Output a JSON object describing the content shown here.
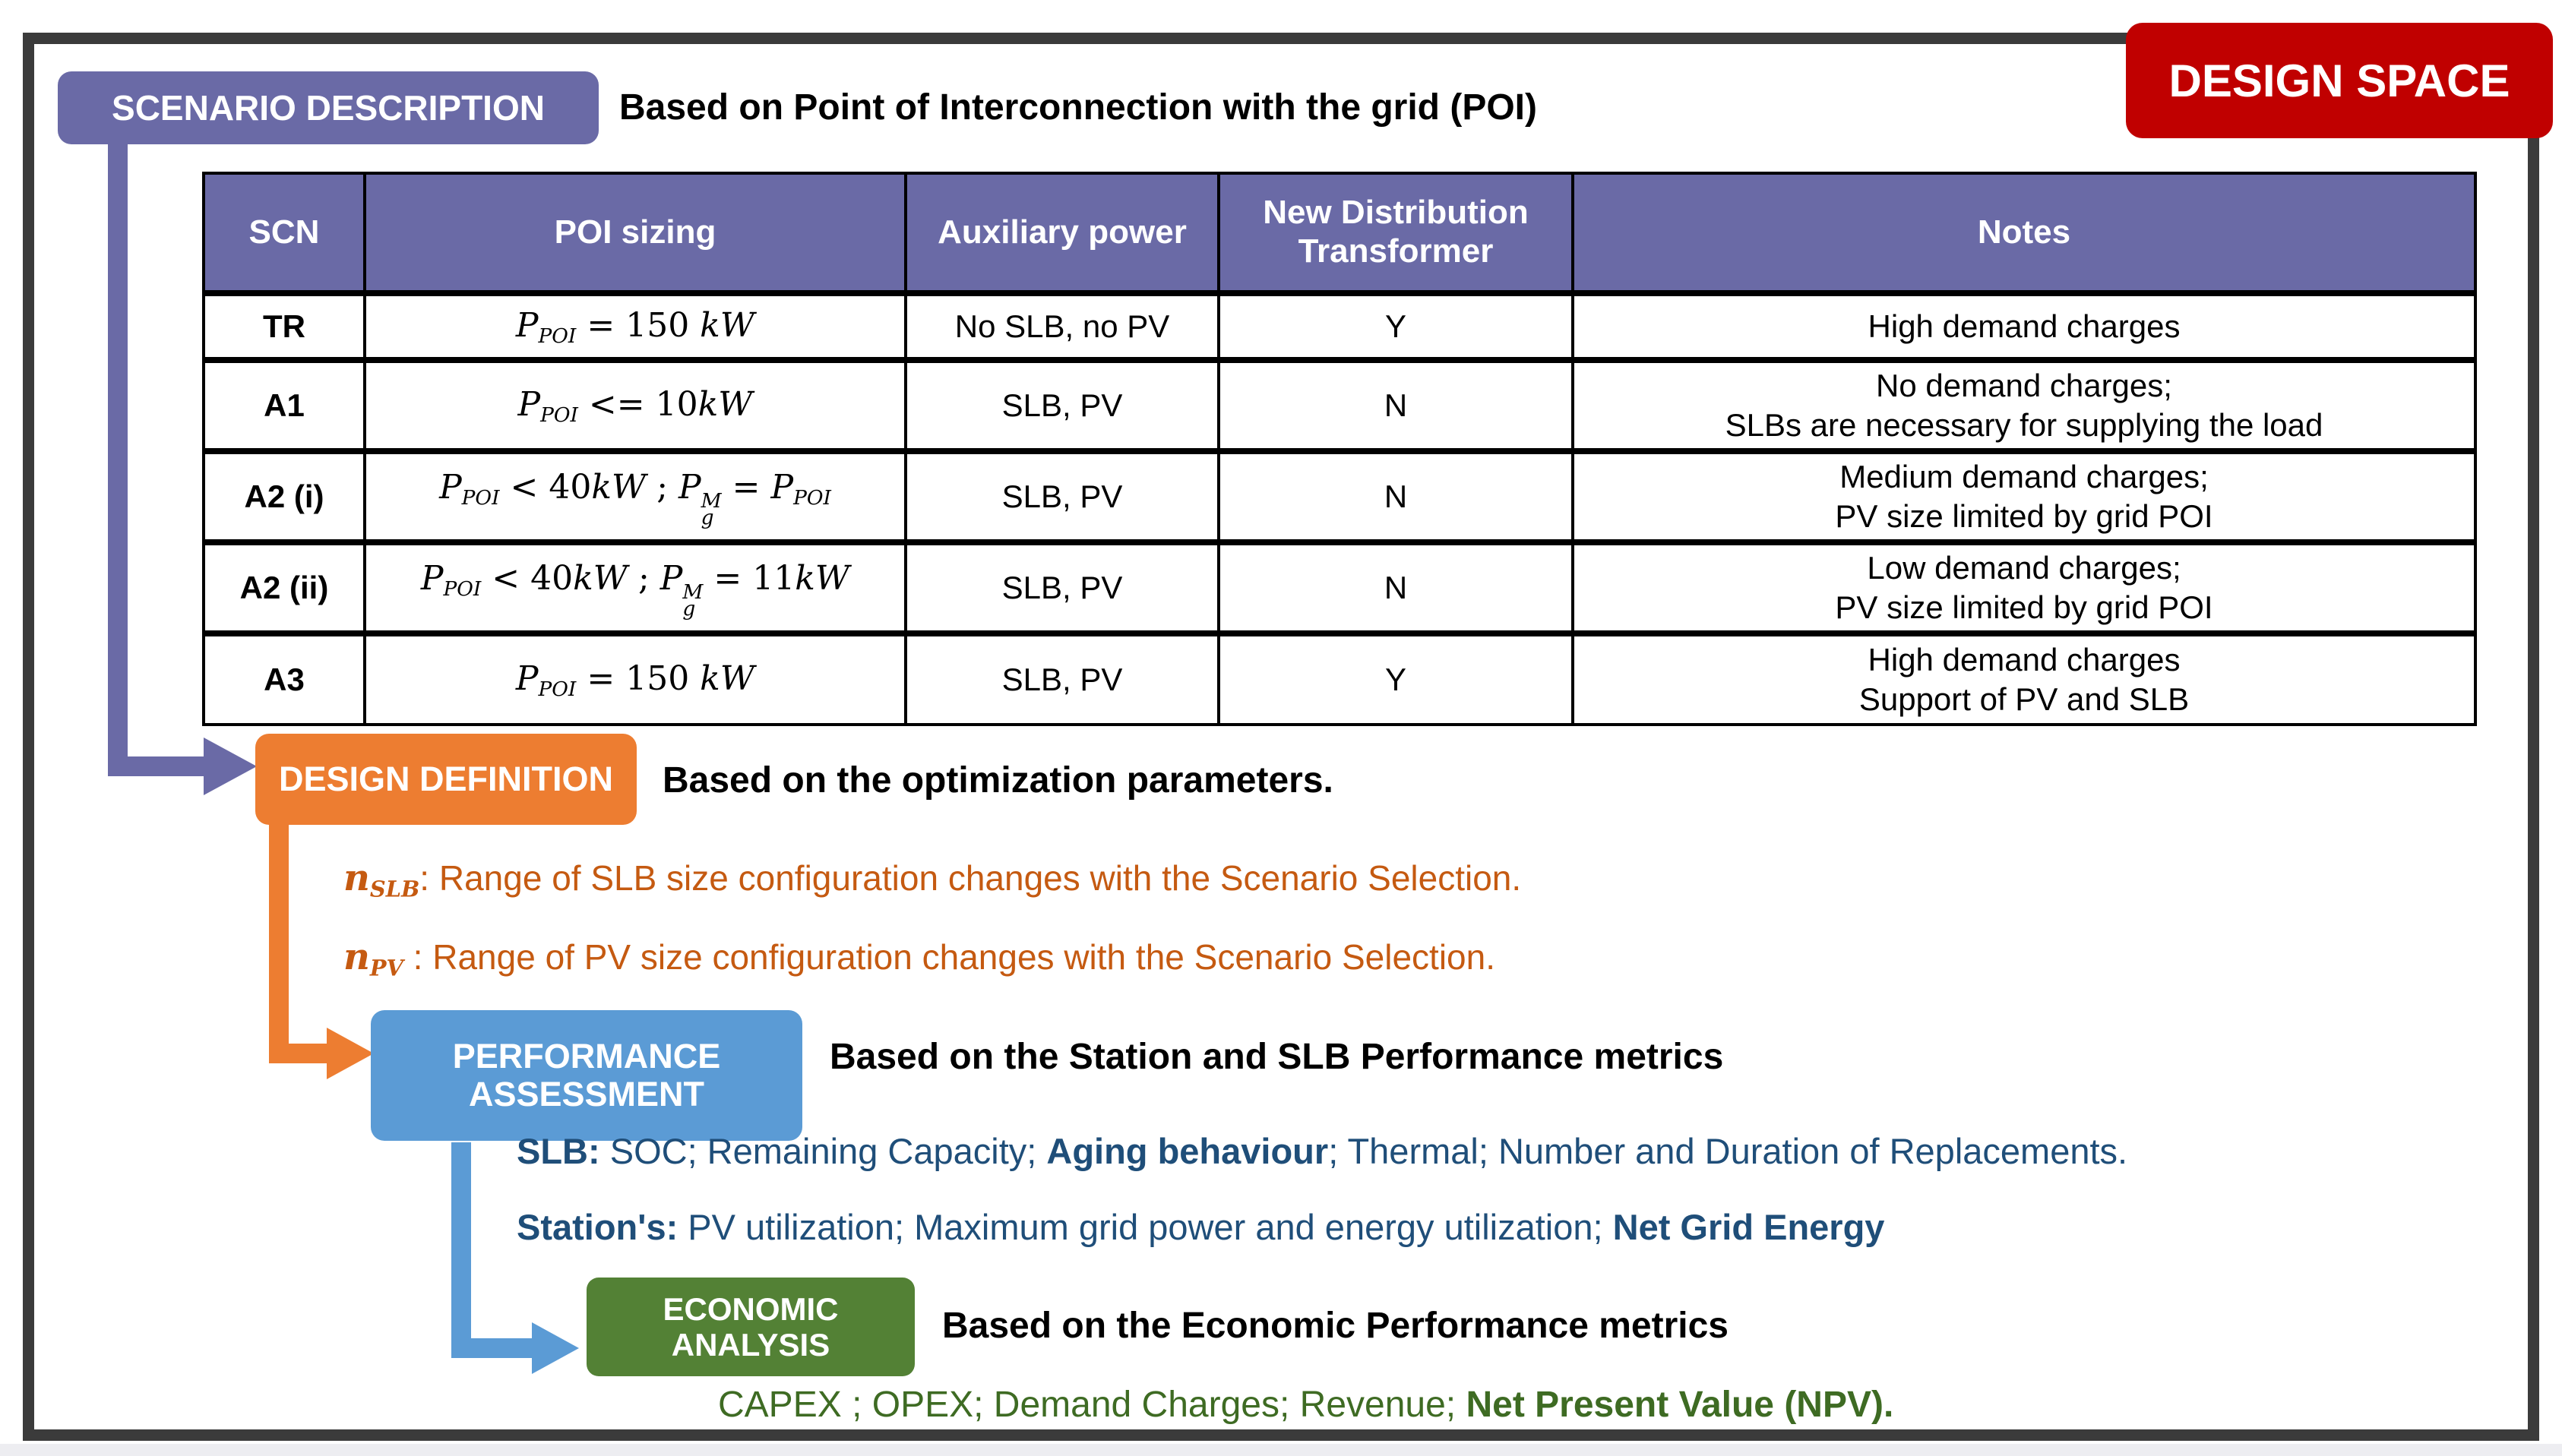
{
  "design_space_label": "DESIGN SPACE",
  "steps": {
    "scenario": {
      "badge": "SCENARIO DESCRIPTION",
      "caption": "Based on Point of Interconnection with the grid (POI)"
    },
    "design": {
      "badge": "DESIGN DEFINITION",
      "caption": "Based on the optimization parameters."
    },
    "performance": {
      "badge_line1": "PERFORMANCE",
      "badge_line2": "ASSESSMENT",
      "caption": "Based on the Station and SLB Performance metrics"
    },
    "economic": {
      "badge_line1": "ECONOMIC",
      "badge_line2": "ANALYSIS",
      "caption": "Based on the Economic Performance metrics"
    }
  },
  "table": {
    "headers": [
      "SCN",
      "POI sizing",
      "Auxiliary power",
      "New Distribution Transformer",
      "Notes"
    ],
    "rows": [
      {
        "scn": "TR",
        "poi": [
          {
            "i": "P"
          },
          {
            "sub": "POI"
          },
          {
            "n": " = 150 "
          },
          {
            "i": "kW"
          }
        ],
        "aux": "No SLB, no PV",
        "transformer": "Y",
        "notes": [
          "High demand charges"
        ]
      },
      {
        "scn": "A1",
        "poi": [
          {
            "i": "P"
          },
          {
            "sub": "POI"
          },
          {
            "n": " <= 10"
          },
          {
            "i": "kW"
          }
        ],
        "aux": "SLB, PV",
        "transformer": "N",
        "notes": [
          "No demand charges;",
          "SLBs are necessary for supplying the load"
        ]
      },
      {
        "scn": "A2 (i)",
        "poi": [
          {
            "i": "P"
          },
          {
            "sub": "POI"
          },
          {
            "n": " < 40"
          },
          {
            "i": "kW"
          },
          {
            "n": " ; "
          },
          {
            "i": "P"
          },
          {
            "ss": {
              "sup": "M",
              "sub": "g"
            }
          },
          {
            "n": " = "
          },
          {
            "i": "P"
          },
          {
            "sub": "POI"
          }
        ],
        "aux": "SLB, PV",
        "transformer": "N",
        "notes": [
          "Medium demand charges;",
          "PV size limited by grid POI"
        ]
      },
      {
        "scn": "A2 (ii)",
        "poi": [
          {
            "i": "P"
          },
          {
            "sub": "POI"
          },
          {
            "n": " < 40"
          },
          {
            "i": "kW"
          },
          {
            "n": " ; "
          },
          {
            "i": "P"
          },
          {
            "ss": {
              "sup": "M",
              "sub": "g"
            }
          },
          {
            "n": " = 11"
          },
          {
            "i": "kW"
          }
        ],
        "aux": "SLB, PV",
        "transformer": "N",
        "notes": [
          "Low demand charges;",
          "PV size limited by grid POI"
        ]
      },
      {
        "scn": "A3",
        "poi": [
          {
            "i": "P"
          },
          {
            "sub": "POI"
          },
          {
            "n": " = 150 "
          },
          {
            "i": "kW"
          }
        ],
        "aux": "SLB, PV",
        "transformer": "Y",
        "notes": [
          "High demand charges",
          "Support of PV and SLB"
        ]
      }
    ]
  },
  "design_params": [
    {
      "symbol": [
        {
          "i": "n"
        },
        {
          "sub": "SLB"
        }
      ],
      "text": ": Range of SLB size configuration changes with the Scenario Selection."
    },
    {
      "symbol": [
        {
          "i": "n"
        },
        {
          "sub": "PV"
        }
      ],
      "text": " : Range of PV size configuration changes with the Scenario Selection."
    }
  ],
  "performance_metrics": {
    "slb": [
      {
        "text": "SLB:",
        "bold": true
      },
      {
        "text": " SOC; Remaining Capacity; "
      },
      {
        "text": "Aging behaviour",
        "bold": true
      },
      {
        "text": "; Thermal; Number and Duration of Replacements."
      }
    ],
    "station": [
      {
        "text": "Station's:",
        "bold": true
      },
      {
        "text": " PV utilization; Maximum grid power and energy utilization; "
      },
      {
        "text": "Net Grid Energy",
        "bold": true
      }
    ]
  },
  "economic_metrics": [
    {
      "text": "CAPEX ; OPEX; Demand Charges; Revenue; "
    },
    {
      "text": "Net Present Value (NPV).",
      "bold": true
    }
  ],
  "colors": {
    "purple": "#6A6AA6",
    "orange_badge": "#ED7D31",
    "orange_text": "#C55A11",
    "blue_badge": "#5B9BD5",
    "blue_text": "#1F4E79",
    "green_badge": "#538135",
    "green_text": "#3E6B23",
    "red_badge": "#C00000",
    "frame_border": "#3B3B3B"
  }
}
